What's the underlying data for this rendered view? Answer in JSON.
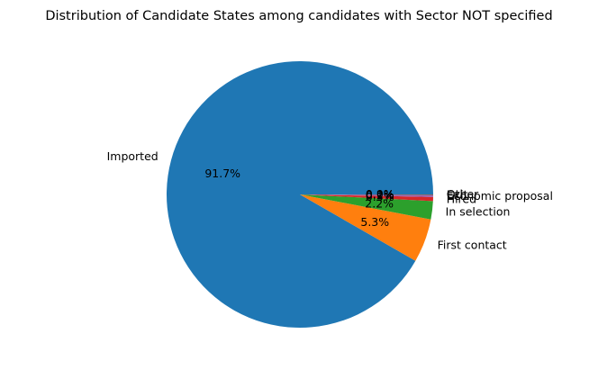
{
  "chart_data": {
    "type": "pie",
    "title": "Distribution of Candidate States among candidates with Sector NOT specified",
    "start_angle_deg": 0,
    "direction": "counterclockwise",
    "slices": [
      {
        "label": "Imported",
        "value": 91.7,
        "pct_label": "91.7%",
        "color": "#1f77b4"
      },
      {
        "label": "First contact",
        "value": 5.3,
        "pct_label": "5.3%",
        "color": "#ff7f0e"
      },
      {
        "label": "In selection",
        "value": 2.2,
        "pct_label": "2.2%",
        "color": "#2ca02c"
      },
      {
        "label": "Hired",
        "value": 0.5,
        "pct_label": "0.5%",
        "color": "#d62728"
      },
      {
        "label": "Economic proposal",
        "value": 0.2,
        "pct_label": "0.2%",
        "color": "#9467bd"
      },
      {
        "label": "Exit",
        "value": 0.1,
        "pct_label": "0.1%",
        "color": "#8c564b"
      },
      {
        "label": "Other",
        "value": 0.0,
        "pct_label": "0.0%",
        "color": "#e377c2"
      }
    ]
  }
}
